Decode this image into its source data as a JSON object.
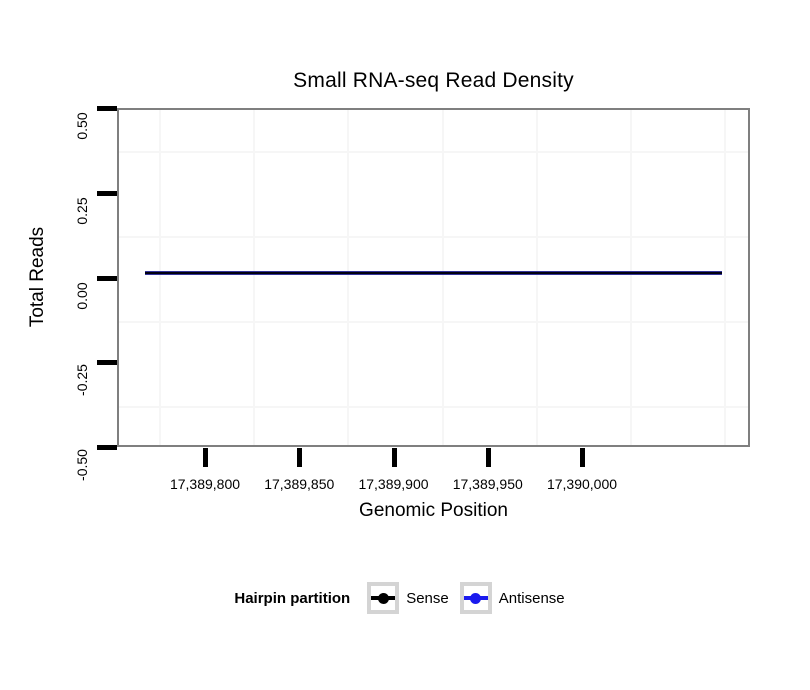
{
  "title": "Small RNA-seq Read Density",
  "axes": {
    "x": {
      "label": "Genomic Position",
      "tick_labels": [
        "17,389,800",
        "17,389,850",
        "17,389,900",
        "17,389,950",
        "17,390,000"
      ]
    },
    "y": {
      "label": "Total Reads",
      "tick_labels": [
        "0.50",
        "0.25",
        "0.00",
        "-0.25",
        "-0.50"
      ]
    }
  },
  "legend": {
    "title": "Hairpin partition",
    "items": [
      {
        "label": "Sense",
        "color": "#000000"
      },
      {
        "label": "Antisense",
        "color": "#1a1aee"
      }
    ]
  },
  "colors": {
    "panel_border": "#7f7f7f",
    "tick": "#000000",
    "minor_grid": "#f6f6f6",
    "data_line_core": "#000010",
    "data_line_edge": "#34349b",
    "legend_key_border": "#d4d4d4",
    "background": "#ffffff"
  },
  "chart_data": {
    "type": "line",
    "title": "Small RNA-seq Read Density",
    "xlabel": "Genomic Position",
    "ylabel": "Total Reads",
    "xlim": [
      17389753,
      17390089
    ],
    "ylim": [
      -0.5,
      0.5
    ],
    "x_ticks": [
      17389800,
      17389850,
      17389900,
      17389950,
      17390000
    ],
    "y_ticks": [
      0.5,
      0.25,
      0.0,
      -0.25,
      -0.5
    ],
    "grid": "minor gridlines only, very light gray, white panel background",
    "legend_title": "Hairpin partition",
    "legend_position": "bottom-center",
    "series": [
      {
        "name": "Sense",
        "color": "#000000",
        "x": [
          17389768,
          17390074
        ],
        "y": [
          0,
          0
        ],
        "note": "flat line at 0 spanning plotted region"
      },
      {
        "name": "Antisense",
        "color": "#1a1aee",
        "x": [
          17389768,
          17390074
        ],
        "y": [
          0,
          0
        ],
        "note": "flat line at 0, overlapped by Sense line"
      }
    ]
  }
}
